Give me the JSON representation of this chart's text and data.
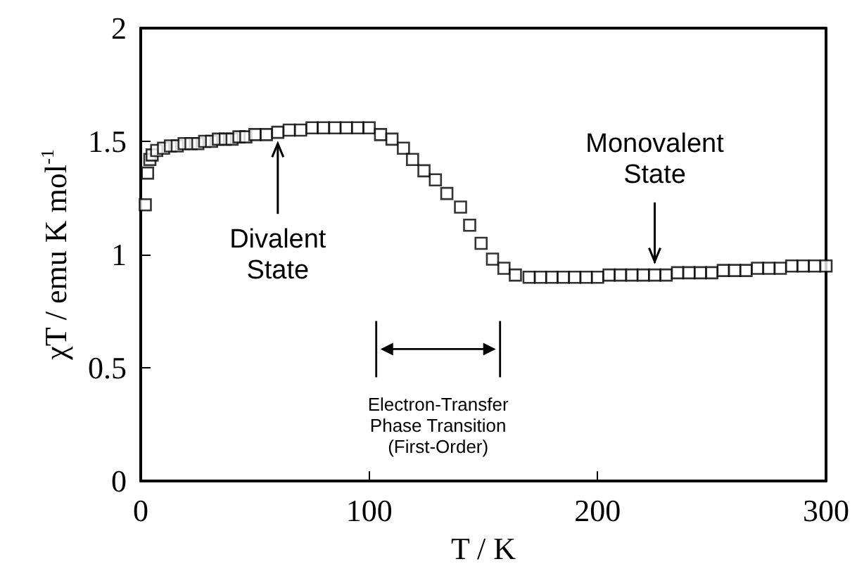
{
  "chart_data": {
    "type": "scatter",
    "xlabel": "T / K",
    "ylabel": "χT / emu K mol$^{-1}$",
    "x": [
      2,
      3,
      4,
      5,
      7,
      10,
      13,
      16,
      19,
      22,
      25,
      28,
      31,
      34,
      37,
      40,
      43,
      46,
      50,
      55,
      60,
      65,
      70,
      75,
      80,
      85,
      90,
      95,
      100,
      105,
      110,
      115,
      119,
      124,
      129,
      134,
      140,
      144,
      149,
      154,
      159,
      164,
      170,
      175,
      180,
      185,
      190,
      195,
      200,
      205,
      210,
      215,
      220,
      225,
      230,
      235,
      240,
      245,
      250,
      255,
      260,
      265,
      270,
      275,
      280,
      285,
      290,
      295,
      300
    ],
    "series": [
      {
        "color": "#000000",
        "values": [
          1.22,
          1.36,
          1.42,
          1.44,
          1.46,
          1.47,
          1.48,
          1.48,
          1.49,
          1.49,
          1.49,
          1.5,
          1.5,
          1.51,
          1.51,
          1.51,
          1.52,
          1.52,
          1.53,
          1.53,
          1.54,
          1.55,
          1.55,
          1.56,
          1.56,
          1.56,
          1.56,
          1.56,
          1.56,
          1.53,
          1.51,
          1.47,
          1.42,
          1.37,
          1.33,
          1.27,
          1.21,
          1.13,
          1.05,
          0.98,
          0.94,
          0.91,
          0.9,
          0.9,
          0.9,
          0.9,
          0.9,
          0.9,
          0.9,
          0.91,
          0.91,
          0.91,
          0.91,
          0.91,
          0.91,
          0.92,
          0.92,
          0.92,
          0.92,
          0.93,
          0.93,
          0.93,
          0.94,
          0.94,
          0.94,
          0.95,
          0.95,
          0.95,
          0.95
        ]
      }
    ],
    "xlim": [
      0,
      300
    ],
    "xticks": [
      0,
      100,
      200,
      300
    ],
    "ylim": [
      0,
      2
    ],
    "yticks": [
      0,
      0.5,
      1,
      1.5,
      2
    ],
    "marker": "square",
    "grid": false,
    "annotations": [
      {
        "text": "Divalent State",
        "x": 60,
        "y": 1.54
      },
      {
        "text": "Monovalent State",
        "x": 225,
        "y": 0.92
      },
      "Electron-Transfer\nPhase Transition\n(First-Order)"
    ]
  }
}
